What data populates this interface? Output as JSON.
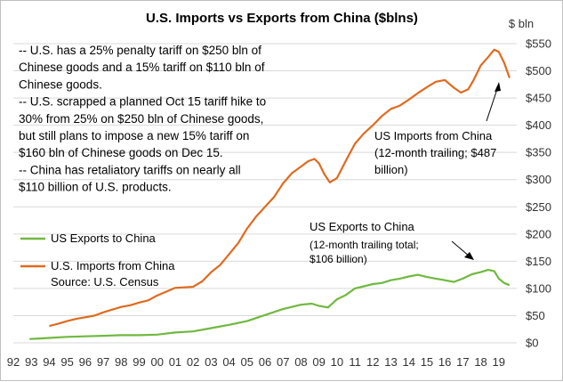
{
  "chart_data": {
    "type": "line",
    "title": "U.S. Imports vs Exports from China ($blns)",
    "y_unit_label": "$ bln",
    "x_ticks": [
      "92",
      "93",
      "94",
      "95",
      "96",
      "97",
      "98",
      "99",
      "00",
      "01",
      "02",
      "03",
      "04",
      "05",
      "06",
      "07",
      "08",
      "09",
      "10",
      "11",
      "12",
      "13",
      "14",
      "15",
      "16",
      "17",
      "18",
      "19"
    ],
    "y_ticks": [
      "$0",
      "$50",
      "$100",
      "$150",
      "$200",
      "$250",
      "$300",
      "$350",
      "$400",
      "$450",
      "$500",
      "$550"
    ],
    "ylim": [
      0,
      550
    ],
    "xlim": [
      1992,
      2020
    ],
    "grid": true,
    "legend": {
      "position": "left-middle",
      "items": [
        "US Exports to China",
        "U.S. Imports from China"
      ],
      "source": "Source:  U.S. Census"
    },
    "series": [
      {
        "name": "U.S. Imports from China",
        "color": "#E06A1E",
        "points": [
          [
            1994.0,
            31
          ],
          [
            1994.5,
            35
          ],
          [
            1995.0,
            40
          ],
          [
            1995.5,
            44
          ],
          [
            1996.0,
            47
          ],
          [
            1996.5,
            50
          ],
          [
            1997.0,
            56
          ],
          [
            1997.5,
            61
          ],
          [
            1998.0,
            66
          ],
          [
            1998.5,
            69
          ],
          [
            1999.0,
            74
          ],
          [
            1999.5,
            78
          ],
          [
            2000.0,
            87
          ],
          [
            2000.5,
            94
          ],
          [
            2001.0,
            101
          ],
          [
            2001.5,
            102
          ],
          [
            2002.0,
            103
          ],
          [
            2002.5,
            113
          ],
          [
            2003.0,
            130
          ],
          [
            2003.5,
            143
          ],
          [
            2004.0,
            163
          ],
          [
            2004.5,
            183
          ],
          [
            2005.0,
            210
          ],
          [
            2005.5,
            232
          ],
          [
            2006.0,
            250
          ],
          [
            2006.5,
            268
          ],
          [
            2007.0,
            293
          ],
          [
            2007.5,
            312
          ],
          [
            2008.0,
            324
          ],
          [
            2008.4,
            334
          ],
          [
            2008.75,
            338
          ],
          [
            2009.0,
            330
          ],
          [
            2009.3,
            310
          ],
          [
            2009.6,
            295
          ],
          [
            2010.0,
            303
          ],
          [
            2010.5,
            335
          ],
          [
            2011.0,
            366
          ],
          [
            2011.5,
            385
          ],
          [
            2012.0,
            400
          ],
          [
            2012.5,
            417
          ],
          [
            2013.0,
            430
          ],
          [
            2013.5,
            436
          ],
          [
            2014.0,
            447
          ],
          [
            2014.5,
            459
          ],
          [
            2015.0,
            470
          ],
          [
            2015.5,
            480
          ],
          [
            2016.0,
            483
          ],
          [
            2016.5,
            469
          ],
          [
            2016.9,
            460
          ],
          [
            2017.3,
            466
          ],
          [
            2017.6,
            483
          ],
          [
            2018.0,
            510
          ],
          [
            2018.4,
            525
          ],
          [
            2018.75,
            539
          ],
          [
            2019.0,
            535
          ],
          [
            2019.3,
            515
          ],
          [
            2019.6,
            487
          ]
        ]
      },
      {
        "name": "US Exports to China",
        "color": "#70B83F",
        "points": [
          [
            1992.9,
            7
          ],
          [
            1993.5,
            8
          ],
          [
            1994.0,
            9
          ],
          [
            1995.0,
            11
          ],
          [
            1996.0,
            12
          ],
          [
            1997.0,
            13
          ],
          [
            1998.0,
            14
          ],
          [
            1999.0,
            14
          ],
          [
            2000.0,
            15
          ],
          [
            2001.0,
            19
          ],
          [
            2002.0,
            21
          ],
          [
            2003.0,
            27
          ],
          [
            2004.0,
            33
          ],
          [
            2005.0,
            40
          ],
          [
            2006.0,
            51
          ],
          [
            2007.0,
            62
          ],
          [
            2008.0,
            70
          ],
          [
            2008.6,
            72
          ],
          [
            2009.0,
            68
          ],
          [
            2009.5,
            65
          ],
          [
            2010.0,
            80
          ],
          [
            2010.5,
            88
          ],
          [
            2011.0,
            100
          ],
          [
            2011.5,
            104
          ],
          [
            2012.0,
            108
          ],
          [
            2012.5,
            110
          ],
          [
            2013.0,
            115
          ],
          [
            2013.5,
            118
          ],
          [
            2014.0,
            122
          ],
          [
            2014.5,
            125
          ],
          [
            2015.0,
            121
          ],
          [
            2015.5,
            118
          ],
          [
            2016.0,
            115
          ],
          [
            2016.5,
            112
          ],
          [
            2017.0,
            118
          ],
          [
            2017.5,
            126
          ],
          [
            2018.0,
            130
          ],
          [
            2018.4,
            134
          ],
          [
            2018.75,
            132
          ],
          [
            2019.0,
            118
          ],
          [
            2019.3,
            110
          ],
          [
            2019.6,
            106
          ]
        ]
      }
    ],
    "annotations": {
      "notes": [
        "-- U.S. has a 25% penalty tariff on $250 bln of",
        "Chinese goods and a 15% tariff on $110 bln of",
        "Chinese goods.",
        "-- U.S. scrapped a planned Oct 15 tariff hike to",
        "30% from  25% on $250 bln of Chinese goods,",
        "but still plans to impose a new 15% tariff on",
        "$160 bln of Chinese goods on Dec 15.",
        "-- China has retaliatory tariffs on nearly all",
        "$110 billion of U.S. products."
      ],
      "imports_label": [
        "US Imports  from China",
        "(12-month  trailing; $487",
        "billion)"
      ],
      "exports_label_title": "US Exports to China",
      "exports_label_detail": [
        "(12-month trailing total;",
        "$106 billion)"
      ]
    }
  }
}
